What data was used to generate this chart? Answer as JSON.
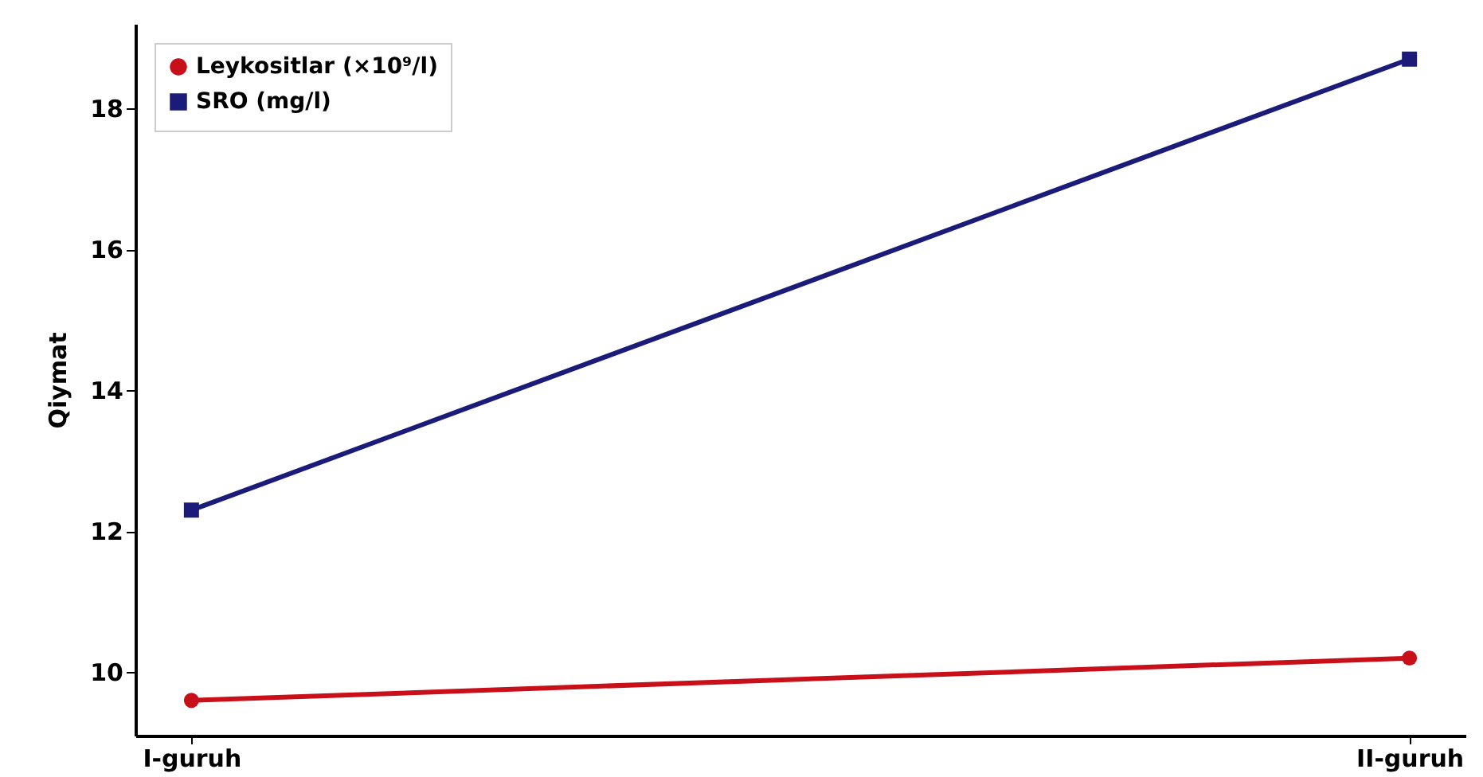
{
  "chart_data": {
    "type": "line",
    "ylabel": "Qiymat",
    "categories": [
      "I-guruh",
      "II-guruh"
    ],
    "series": [
      {
        "name": "Leykositlar (×10⁹/l)",
        "color": "#c8101a",
        "marker": "circle",
        "values": [
          9.6,
          10.2
        ]
      },
      {
        "name": "SRO (mg/l)",
        "color": "#1b1b7a",
        "marker": "square",
        "values": [
          12.3,
          18.7
        ]
      }
    ],
    "ylim": [
      9.1,
      19.2
    ],
    "yticks": [
      10,
      12,
      14,
      16,
      18
    ],
    "grid": false,
    "legend": "top left",
    "line_style": "solid"
  }
}
